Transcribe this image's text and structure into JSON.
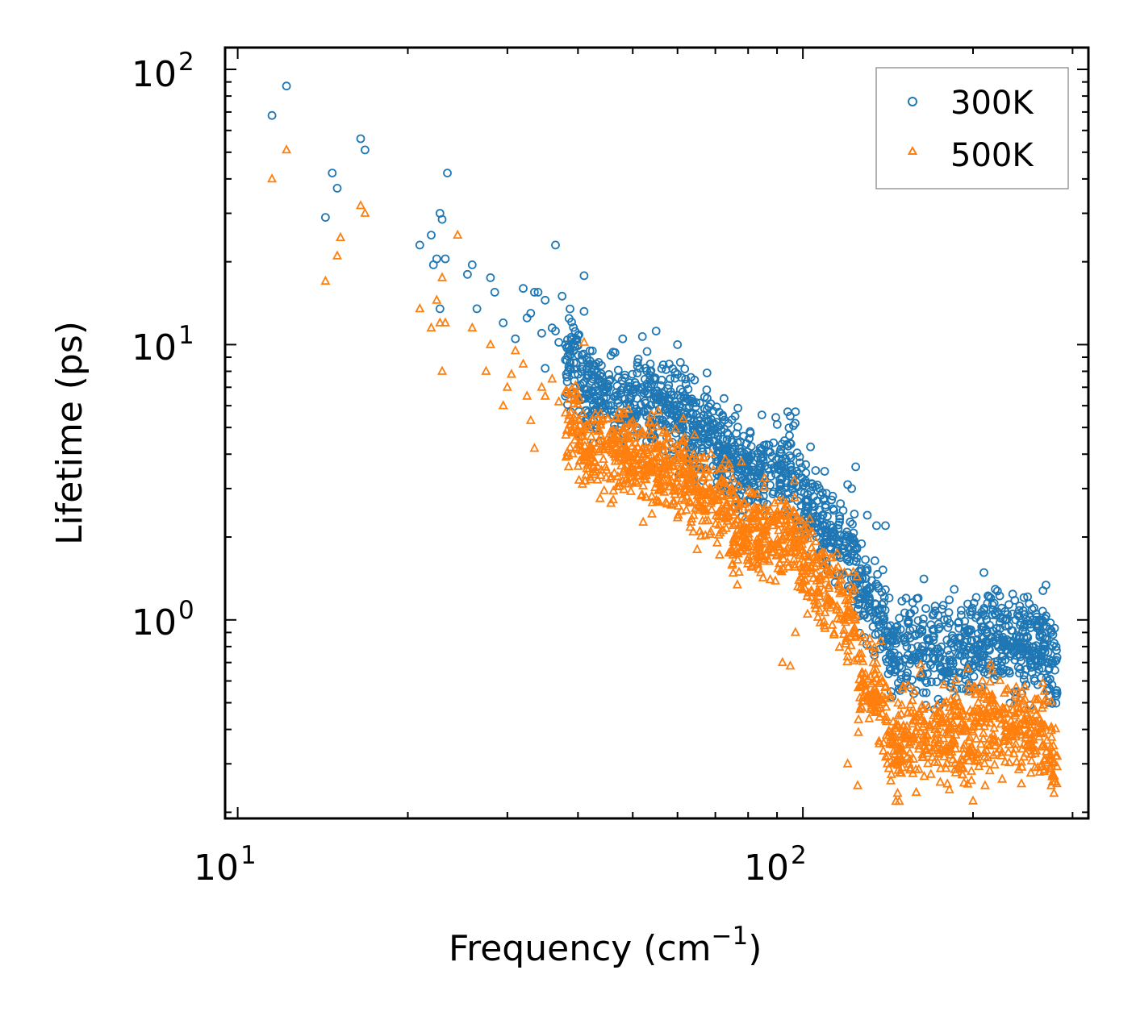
{
  "chart_data": {
    "type": "scatter",
    "xscale": "log",
    "yscale": "log",
    "xlim": [
      9.5,
      320
    ],
    "ylim": [
      0.19,
      120
    ],
    "xlabel": "Frequency (cm",
    "xlabel_sup": "−1",
    "xlabel_close": ")",
    "ylabel": "Lifetime (ps)",
    "xticks": [
      {
        "base": "10",
        "exp": "1"
      },
      {
        "base": "10",
        "exp": "2"
      }
    ],
    "yticks": [
      {
        "base": "10",
        "exp": "0"
      },
      {
        "base": "10",
        "exp": "1"
      },
      {
        "base": "10",
        "exp": "2"
      }
    ],
    "legend_position": "top-right",
    "series": [
      {
        "name": "300K",
        "marker": "circle",
        "color": "#1f77b4",
        "points": [
          [
            11.5,
            68
          ],
          [
            12.2,
            87
          ],
          [
            14.7,
            42
          ],
          [
            14.3,
            29
          ],
          [
            15,
            37
          ],
          [
            16.5,
            56
          ],
          [
            16.8,
            51
          ],
          [
            21,
            23
          ],
          [
            22,
            25
          ],
          [
            22.5,
            20.5
          ],
          [
            22.8,
            30
          ],
          [
            23,
            28.5
          ],
          [
            23.3,
            20.5
          ],
          [
            23.5,
            42
          ],
          [
            22.2,
            19.5
          ],
          [
            22.8,
            13.5
          ],
          [
            25.5,
            18
          ],
          [
            26,
            19.5
          ],
          [
            26.5,
            13.5
          ],
          [
            28,
            17.5
          ],
          [
            28.5,
            15.5
          ],
          [
            29.5,
            12
          ],
          [
            31,
            10.5
          ],
          [
            32,
            16
          ],
          [
            32.5,
            12.5
          ],
          [
            33,
            13
          ],
          [
            33.5,
            15.5
          ],
          [
            34,
            15.5
          ],
          [
            34.5,
            11
          ],
          [
            35,
            14.5
          ],
          [
            35,
            8.2
          ],
          [
            36,
            11.5
          ],
          [
            36.5,
            11.2
          ],
          [
            37,
            10.2
          ],
          [
            37.5,
            15
          ],
          [
            36.5,
            23
          ],
          [
            38,
            6.5
          ],
          [
            39.5,
            7.8
          ],
          [
            40,
            10.8
          ],
          [
            41,
            13.2
          ],
          [
            41,
            17.8
          ],
          [
            42,
            9.5
          ],
          [
            42.5,
            7.5
          ],
          [
            45,
            7
          ],
          [
            48,
            10.5
          ],
          [
            52,
            10.7
          ],
          [
            53,
            7.2
          ],
          [
            55,
            11.2
          ],
          [
            58,
            8.5
          ],
          [
            60,
            7.8
          ],
          [
            60,
            10
          ],
          [
            61,
            7.6
          ],
          [
            62,
            7.5
          ],
          [
            94,
            5.7
          ],
          [
            95,
            5.5
          ],
          [
            97,
            5.7
          ],
          [
            120,
            3.1
          ],
          [
            122,
            3
          ],
          [
            124,
            3.6
          ],
          [
            130,
            2.4
          ],
          [
            135,
            2.2
          ],
          [
            140,
            2.2
          ],
          [
            160,
            1.2
          ],
          [
            165,
            1.1
          ],
          [
            215,
            1.2
          ],
          [
            218,
            1.15
          ],
          [
            235,
            1.05
          ],
          [
            238,
            1
          ],
          [
            255,
            1
          ],
          [
            260,
            0.95
          ]
        ]
      },
      {
        "name": "500K",
        "marker": "triangle",
        "color": "#ff7f0e",
        "points": [
          [
            11.5,
            40
          ],
          [
            12.2,
            51
          ],
          [
            14.3,
            17
          ],
          [
            15,
            21
          ],
          [
            15.2,
            24.5
          ],
          [
            16.5,
            32
          ],
          [
            16.8,
            30
          ],
          [
            21,
            13.5
          ],
          [
            22,
            11.5
          ],
          [
            22.5,
            14.5
          ],
          [
            22.8,
            12
          ],
          [
            23,
            17.5
          ],
          [
            23,
            8
          ],
          [
            23.3,
            12
          ],
          [
            24.5,
            25
          ],
          [
            26,
            11.5
          ],
          [
            27.5,
            8
          ],
          [
            28,
            10
          ],
          [
            29.5,
            6
          ],
          [
            30,
            7
          ],
          [
            30.5,
            7.8
          ],
          [
            31,
            9.5
          ],
          [
            32,
            8.5
          ],
          [
            32.5,
            6.5
          ],
          [
            33,
            5.3
          ],
          [
            33.5,
            4.2
          ],
          [
            34.5,
            7
          ],
          [
            35,
            6.5
          ],
          [
            36,
            7.5
          ],
          [
            37,
            6.2
          ],
          [
            38.5,
            3.6
          ],
          [
            39.5,
            4.5
          ],
          [
            41,
            10.2
          ],
          [
            42,
            3.3
          ],
          [
            44,
            3.5
          ],
          [
            46,
            4.5
          ],
          [
            48,
            3.2
          ],
          [
            50,
            4
          ],
          [
            52,
            4.2
          ],
          [
            54,
            3.5
          ],
          [
            60,
            4.2
          ],
          [
            61,
            4
          ],
          [
            63,
            2.7
          ],
          [
            65,
            1.8
          ],
          [
            92,
            0.7
          ],
          [
            95,
            0.68
          ],
          [
            97,
            0.9
          ],
          [
            100,
            1.5
          ],
          [
            110,
            1.2
          ],
          [
            120,
            0.3
          ],
          [
            125,
            0.25
          ],
          [
            200,
            0.22
          ],
          [
            210,
            0.25
          ],
          [
            275,
            0.25
          ]
        ]
      }
    ]
  }
}
